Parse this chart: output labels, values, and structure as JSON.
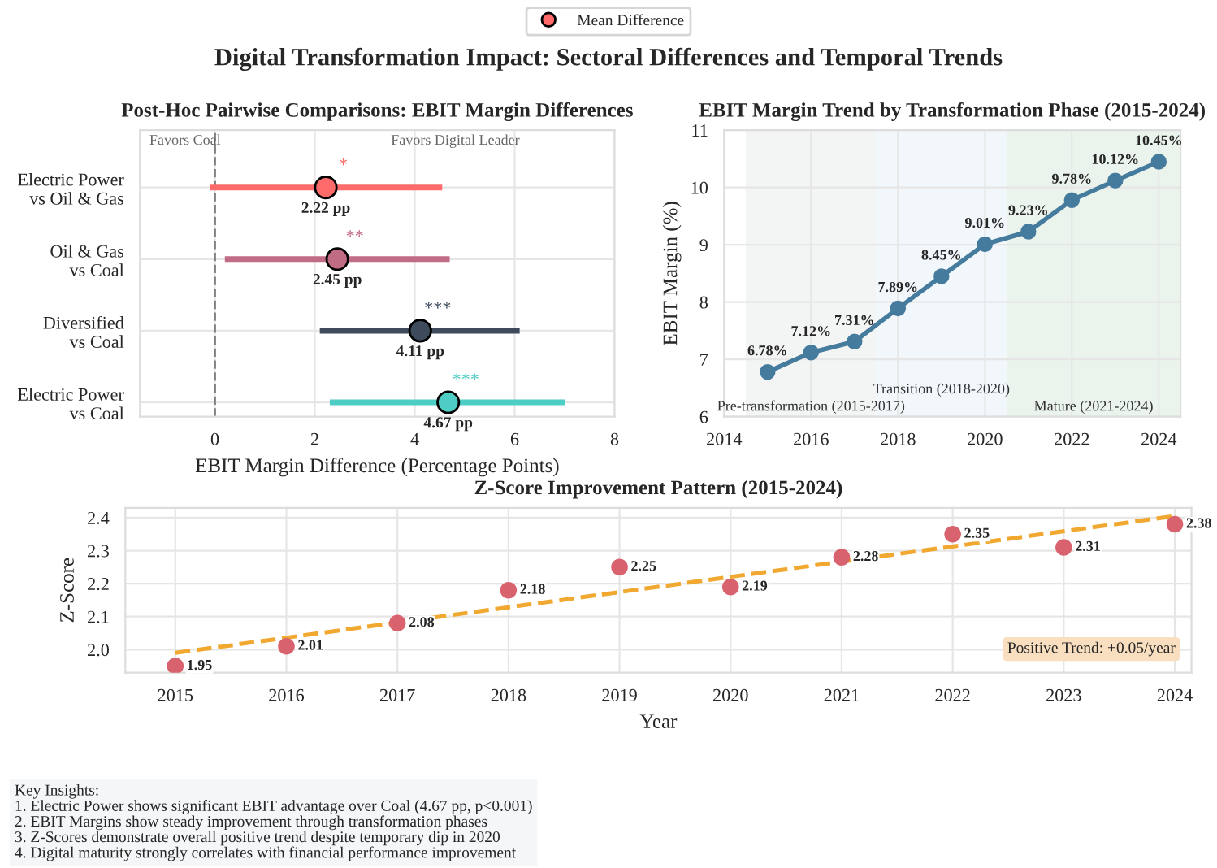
{
  "chart_data": [
    {
      "type": "scatter",
      "orientation": "horizontal",
      "title": "Post-Hoc Pairwise Comparisons: EBIT Margin Differences",
      "xlabel": "EBIT Margin Difference (Percentage Points)",
      "categories": [
        "Electric Power\nvs Oil & Gas",
        "Oil & Gas\nvs Coal",
        "Diversified\nvs Coal",
        "Electric Power\nvs Coal"
      ],
      "series": [
        {
          "name": "Mean Difference",
          "values": [
            2.22,
            2.45,
            4.11,
            4.67
          ],
          "colors": [
            "#ff6b6b",
            "#c06c84",
            "#3d4b5c",
            "#4ecdc4"
          ],
          "errors": [
            [
              -0.1,
              4.55
            ],
            [
              0.2,
              4.7
            ],
            [
              2.1,
              6.1
            ],
            [
              2.3,
              7.0
            ]
          ],
          "value_labels": [
            "2.22 pp",
            "2.45 pp",
            "4.11 pp",
            "4.67 pp"
          ]
        }
      ],
      "xlim": [
        -1.5,
        8
      ],
      "xticks": [
        0,
        2,
        4,
        6,
        8
      ],
      "ref_lines": [
        {
          "axis": "x",
          "value": 0,
          "color": "#808080",
          "line_style": "dashed"
        }
      ],
      "annotations": [
        "Digital Transformation Impact: Sectoral Differences and Temporal Trends",
        "Favors Coal",
        "Favors Digital Leader",
        "*",
        "**",
        "***",
        "***"
      ],
      "grid": true,
      "legend": "top",
      "marker": "circle"
    },
    {
      "type": "line",
      "title": "EBIT Margin Trend by Transformation Phase (2015-2024)",
      "ylabel": "EBIT Margin (%)",
      "x": [
        2015,
        2016,
        2017,
        2018,
        2019,
        2020,
        2021,
        2022,
        2023,
        2024
      ],
      "series": [
        {
          "color": "#457b9d",
          "values": [
            6.78,
            7.12,
            7.31,
            7.89,
            8.45,
            9.01,
            9.23,
            9.78,
            10.12,
            10.45
          ],
          "value_labels": [
            "6.78%",
            "7.12%",
            "7.31%",
            "7.89%",
            "8.45%",
            "9.01%",
            "9.23%",
            "9.78%",
            "10.12%",
            "10.45%"
          ]
        }
      ],
      "xlim": [
        2014,
        2024.5
      ],
      "xticks": [
        2014,
        2016,
        2018,
        2020,
        2022,
        2024
      ],
      "ylim": [
        6,
        11
      ],
      "yticks": [
        6,
        7,
        8,
        9,
        10,
        11
      ],
      "bands": [
        {
          "axis": "x",
          "from": 2014.5,
          "to": 2017.5,
          "label": "Pre-transformation (2015-2017)",
          "color": "#f3f4f4"
        },
        {
          "axis": "x",
          "from": 2017.5,
          "to": 2020.5,
          "label": "Transition (2018-2020)",
          "color": "#f1f7fa"
        },
        {
          "axis": "x",
          "from": 2020.5,
          "to": 2024.5,
          "label": "Mature (2021-2024)",
          "color": "#ebf4ec"
        }
      ],
      "grid": true,
      "marker": "circle",
      "line_style": "solid"
    },
    {
      "type": "scatter",
      "title": "Z-Score Improvement Pattern (2015-2024)",
      "xlabel": "Year",
      "ylabel": "Z-Score",
      "x": [
        2015,
        2016,
        2017,
        2018,
        2019,
        2020,
        2021,
        2022,
        2023,
        2024
      ],
      "series": [
        {
          "color": "#d9626f",
          "values": [
            1.95,
            2.01,
            2.08,
            2.18,
            2.25,
            2.19,
            2.28,
            2.35,
            2.31,
            2.38
          ],
          "value_labels": [
            "1.95",
            "2.01",
            "2.08",
            "2.18",
            "2.25",
            "2.19",
            "2.28",
            "2.35",
            "2.31",
            "2.38"
          ]
        },
        {
          "type": "line",
          "x": [
            2015,
            2024
          ],
          "values": [
            1.99,
            2.405
          ],
          "color": "#f0a830",
          "line_style": "dashed",
          "marker": "none"
        }
      ],
      "xlim": [
        2014.55,
        2024.15
      ],
      "xticks": [
        2015,
        2016,
        2017,
        2018,
        2019,
        2020,
        2021,
        2022,
        2023,
        2024
      ],
      "ylim": [
        1.93,
        2.43
      ],
      "yticks": [
        {
          "value": 2.0,
          "label": "2.0"
        },
        2.1,
        2.2,
        2.3,
        2.4
      ],
      "annotations": [
        "Positive Trend: +0.05/year",
        "Key Insights:\n1. Electric Power shows significant EBIT advantage over Coal (4.67 pp, p<0.001)\n2. EBIT Margins show steady improvement through transformation phases\n3. Z-Scores demonstrate overall positive trend despite temporary dip in 2020\n4. Digital maturity strongly correlates with financial performance improvement"
      ],
      "grid": true,
      "marker": "circle"
    }
  ]
}
